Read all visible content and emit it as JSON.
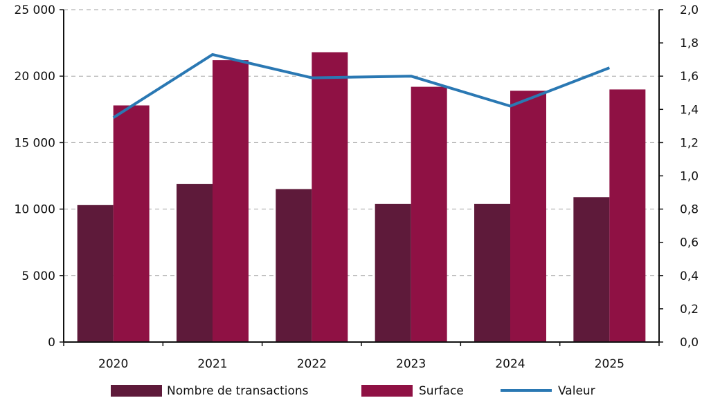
{
  "chart_data": {
    "type": "bar",
    "title": "",
    "xlabel": "",
    "ylabel": "",
    "categories": [
      "2020",
      "2021",
      "2022",
      "2023",
      "2024",
      "2025"
    ],
    "ylim": [
      0,
      25000
    ],
    "y_ticks": [
      "0",
      "5 000",
      "10 000",
      "15 000",
      "20 000",
      "25 000"
    ],
    "y2lim": [
      0,
      2.0
    ],
    "y2_ticks": [
      "0,0",
      "0,2",
      "0,4",
      "0,6",
      "0,8",
      "1,0",
      "1,2",
      "1,4",
      "1,6",
      "1,8",
      "2,0"
    ],
    "grid": "horizontal dashed",
    "legend_position": "bottom",
    "series": [
      {
        "name": "Nombre de transactions",
        "kind": "bar",
        "axis": "left",
        "color": "#5e1a3a",
        "values": [
          10300,
          11900,
          11500,
          10400,
          10400,
          10900
        ]
      },
      {
        "name": "Surface",
        "kind": "bar",
        "axis": "left",
        "color": "#8f1144",
        "values": [
          17800,
          21200,
          21800,
          19200,
          18900,
          19000
        ]
      },
      {
        "name": "Valeur",
        "kind": "line",
        "axis": "right",
        "color": "#2a78b3",
        "values": [
          1.35,
          1.73,
          1.59,
          1.6,
          1.42,
          1.65
        ]
      }
    ]
  }
}
